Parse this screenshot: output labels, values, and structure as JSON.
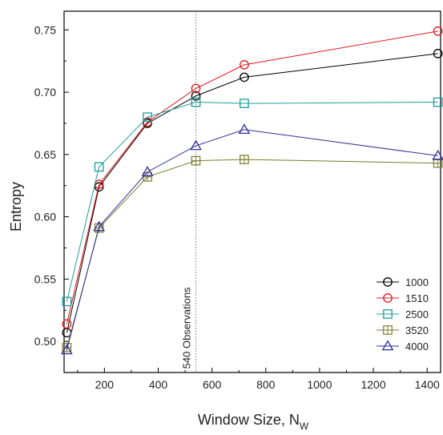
{
  "chart_data": {
    "type": "line",
    "xlabel": "Window Size, N",
    "xlabel_sub": "W",
    "ylabel": "Entropy",
    "xlim": [
      50,
      1450
    ],
    "ylim": [
      0.475,
      0.765
    ],
    "x_ticks": [
      200,
      400,
      600,
      800,
      1000,
      1200,
      1400
    ],
    "y_ticks": [
      0.5,
      0.55,
      0.6,
      0.65,
      0.7,
      0.75
    ],
    "grid": false,
    "legend_position": "bottom-right",
    "x": [
      60,
      180,
      360,
      540,
      720,
      1440
    ],
    "series": [
      {
        "name": "1000",
        "marker": "circle",
        "color": "#000000",
        "values": [
          0.507,
          0.624,
          0.675,
          0.697,
          0.712,
          0.731
        ]
      },
      {
        "name": "1510",
        "marker": "circle",
        "color": "#e0191c",
        "values": [
          0.514,
          0.626,
          0.676,
          0.703,
          0.722,
          0.749
        ]
      },
      {
        "name": "2500",
        "marker": "square",
        "color": "#1c9d9d",
        "values": [
          0.532,
          0.64,
          0.68,
          0.692,
          0.691,
          0.692
        ]
      },
      {
        "name": "3520",
        "marker": "boxcross",
        "color": "#7d7a2a",
        "values": [
          0.495,
          0.591,
          0.632,
          0.645,
          0.646,
          0.643
        ]
      },
      {
        "name": "4000",
        "marker": "triangle",
        "color": "#2e2e9a",
        "values": [
          0.493,
          0.592,
          0.636,
          0.657,
          0.67,
          0.649
        ]
      }
    ],
    "annotations": [
      {
        "text": "540 Observations",
        "x": 540,
        "style": "vertical dotted line"
      }
    ]
  }
}
